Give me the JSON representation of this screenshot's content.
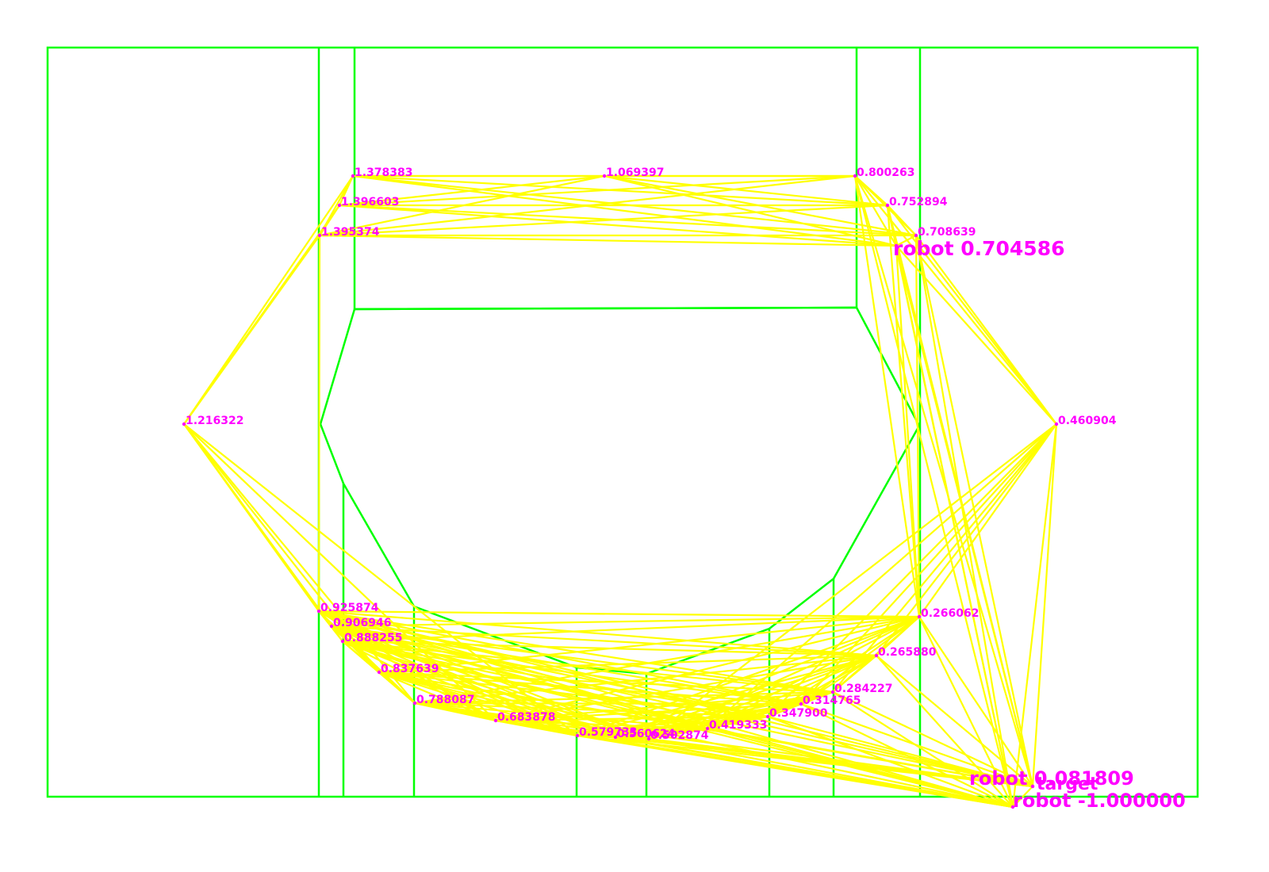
{
  "colors": {
    "background": "#ffffff",
    "map": "#00ff00",
    "edges": "#ffff00",
    "labels": "#ff00ff"
  },
  "nodes": [
    {
      "id": "n1",
      "label": "1.378383"
    },
    {
      "id": "n2",
      "label": "1.069397"
    },
    {
      "id": "n3",
      "label": "0.800263"
    },
    {
      "id": "n4",
      "label": "1.396603"
    },
    {
      "id": "n5",
      "label": "0.752894"
    },
    {
      "id": "n6",
      "label": "1.395374"
    },
    {
      "id": "n7",
      "label": "0.708639"
    },
    {
      "id": "n8",
      "label": "1.216322"
    },
    {
      "id": "n9",
      "label": "0.460904"
    },
    {
      "id": "n10",
      "label": "0.925874"
    },
    {
      "id": "n11",
      "label": "0.906946"
    },
    {
      "id": "n12",
      "label": "0.888255"
    },
    {
      "id": "n13",
      "label": "0.837639"
    },
    {
      "id": "n14",
      "label": "0.788087"
    },
    {
      "id": "n15",
      "label": "0.683878"
    },
    {
      "id": "n16",
      "label": "0.579733"
    },
    {
      "id": "n17",
      "label": "0.560624"
    },
    {
      "id": "n18",
      "label": "0.502874"
    },
    {
      "id": "n19",
      "label": "0.419333"
    },
    {
      "id": "n20",
      "label": "0.347900"
    },
    {
      "id": "n21",
      "label": "0.314765"
    },
    {
      "id": "n22",
      "label": "0.284227"
    },
    {
      "id": "n23",
      "label": "0.265880"
    },
    {
      "id": "n24",
      "label": "0.266062"
    }
  ],
  "robots": [
    {
      "id": "r1",
      "label": "robot 0.704586"
    },
    {
      "id": "r2",
      "label": "robot 0.081809"
    },
    {
      "id": "r3",
      "label": "robot -1.000000"
    }
  ],
  "target": {
    "label": "target"
  }
}
